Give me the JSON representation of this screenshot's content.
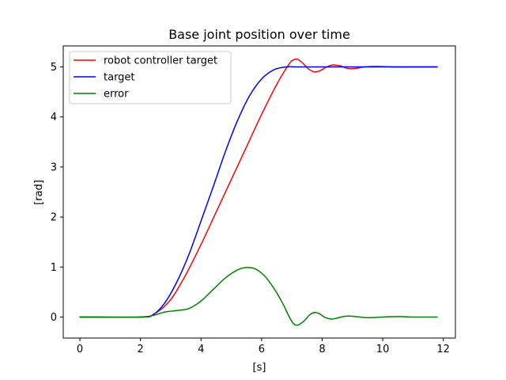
{
  "chart_data": {
    "type": "line",
    "title": "Base joint position over time",
    "xlabel": "[s]",
    "ylabel": "[rad]",
    "xlim": [
      -0.55,
      12.4
    ],
    "ylim": [
      -0.42,
      5.42
    ],
    "xticks": [
      0,
      2,
      4,
      6,
      8,
      10,
      12
    ],
    "yticks": [
      0,
      1,
      2,
      3,
      4,
      5
    ],
    "grid": false,
    "legend_position": "upper-left",
    "series": [
      {
        "name": "robot controller target",
        "color": "#ff0000",
        "x": [
          0,
          2.0,
          2.5,
          3.0,
          3.5,
          4.0,
          4.5,
          5.0,
          5.5,
          6.0,
          6.5,
          6.9,
          7.05,
          7.2,
          7.35,
          7.55,
          7.75,
          7.95,
          8.15,
          8.35,
          8.6,
          8.85,
          9.1,
          9.4,
          9.8,
          10.5,
          11.2,
          11.8
        ],
        "y": [
          0,
          0,
          0.08,
          0.35,
          0.85,
          1.45,
          2.1,
          2.75,
          3.4,
          4.05,
          4.65,
          5.05,
          5.14,
          5.15,
          5.08,
          4.96,
          4.9,
          4.93,
          5.0,
          5.04,
          5.02,
          4.97,
          4.97,
          5.0,
          5.01,
          5.0,
          5.0,
          5.0
        ]
      },
      {
        "name": "target",
        "color": "#0000ff",
        "x": [
          0,
          2.0,
          2.4,
          2.8,
          3.2,
          3.6,
          4.0,
          4.4,
          4.8,
          5.2,
          5.6,
          6.0,
          6.4,
          6.8,
          7.2,
          8.0,
          9.0,
          10.0,
          11.0,
          11.8
        ],
        "y": [
          0,
          0,
          0.04,
          0.28,
          0.7,
          1.25,
          1.92,
          2.6,
          3.3,
          3.92,
          4.42,
          4.76,
          4.94,
          5.0,
          5.0,
          5.0,
          5.0,
          5.0,
          5.0,
          5.0
        ]
      },
      {
        "name": "error",
        "color": "#008000",
        "x": [
          0,
          2.0,
          2.4,
          2.8,
          3.2,
          3.6,
          4.0,
          4.4,
          4.8,
          5.2,
          5.5,
          5.8,
          6.1,
          6.4,
          6.7,
          6.9,
          7.05,
          7.2,
          7.4,
          7.6,
          7.75,
          7.9,
          8.1,
          8.3,
          8.5,
          8.7,
          8.9,
          9.1,
          9.4,
          9.7,
          10.0,
          10.5,
          11.0,
          11.8
        ],
        "y": [
          0,
          0,
          0.03,
          0.1,
          0.13,
          0.17,
          0.32,
          0.55,
          0.78,
          0.94,
          0.99,
          0.96,
          0.82,
          0.58,
          0.27,
          0.02,
          -0.13,
          -0.16,
          -0.08,
          0.05,
          0.09,
          0.07,
          -0.01,
          -0.04,
          -0.02,
          0.01,
          0.02,
          0.01,
          -0.01,
          -0.01,
          0.0,
          0.01,
          0.0,
          0.0
        ]
      }
    ]
  }
}
